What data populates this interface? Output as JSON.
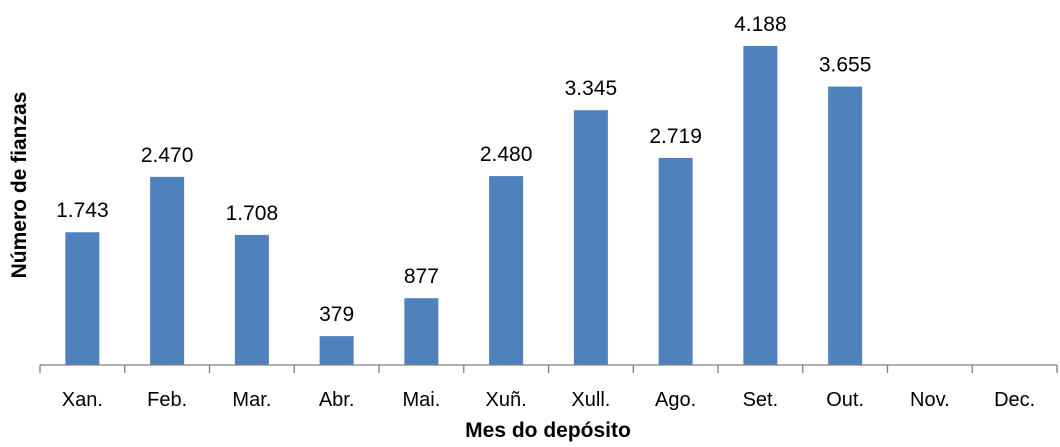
{
  "chart_data": {
    "type": "bar",
    "title": "",
    "xlabel": "Mes do depósito",
    "ylabel": "Número de fianzas",
    "categories": [
      "Xan.",
      "Feb.",
      "Mar.",
      "Abr.",
      "Mai.",
      "Xuñ.",
      "Xull.",
      "Ago.",
      "Set.",
      "Out.",
      "Nov.",
      "Dec."
    ],
    "values": [
      1743,
      2470,
      1708,
      379,
      877,
      2480,
      3345,
      2719,
      4188,
      3655,
      null,
      null
    ],
    "value_labels": [
      "1.743",
      "2.470",
      "1.708",
      "379",
      "877",
      "2.480",
      "3.345",
      "2.719",
      "4.188",
      "3.655",
      "",
      ""
    ],
    "ylim": [
      0,
      4188
    ],
    "grid": false,
    "legend": "none",
    "colors": {
      "bar": "#4F81BD",
      "axis": "#808080",
      "text": "#000000"
    }
  }
}
